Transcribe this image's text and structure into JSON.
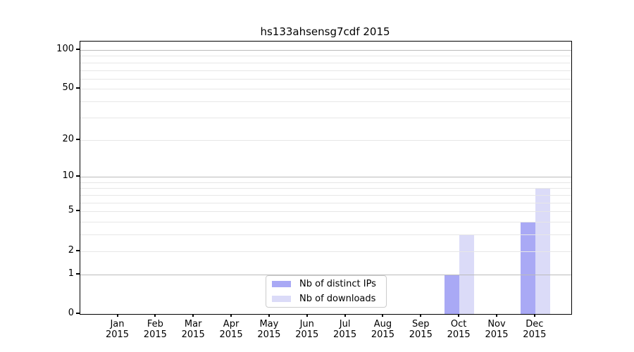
{
  "figure": {
    "background": "#ffffff",
    "text_color": "#000000",
    "axis_color": "#000000"
  },
  "chart_data": {
    "type": "bar",
    "title": "hs133ahsensg7cdf 2015",
    "x": {
      "categories": [
        "Jan",
        "Feb",
        "Mar",
        "Apr",
        "May",
        "Jun",
        "Jul",
        "Aug",
        "Sep",
        "Oct",
        "Nov",
        "Dec"
      ],
      "sub_label": "2015"
    },
    "series": [
      {
        "name": "Nb of distinct IPs",
        "color": "#a9a9f5",
        "values": [
          0,
          0,
          0,
          0,
          0,
          0,
          0,
          0,
          0,
          1,
          0,
          4
        ]
      },
      {
        "name": "Nb of downloads",
        "color": "#dbdbf8",
        "values": [
          0,
          0,
          0,
          0,
          0,
          0,
          0,
          0,
          0,
          3,
          0,
          8
        ]
      }
    ],
    "y_axis": {
      "scale": "log10(1+y)",
      "tick_values": [
        0,
        1,
        2,
        5,
        10,
        20,
        50,
        100
      ],
      "major_grid_values": [
        1,
        10,
        100
      ],
      "minor_grid_values": [
        2,
        3,
        4,
        5,
        6,
        7,
        8,
        9,
        20,
        30,
        40,
        50,
        60,
        70,
        80,
        90
      ],
      "max": 116
    },
    "grid_colors": {
      "major": "#bbbbbb",
      "minor": "#e7e7e7"
    },
    "legend": {
      "position": "inside-bottom-center",
      "border_color": "#cccccc"
    }
  }
}
